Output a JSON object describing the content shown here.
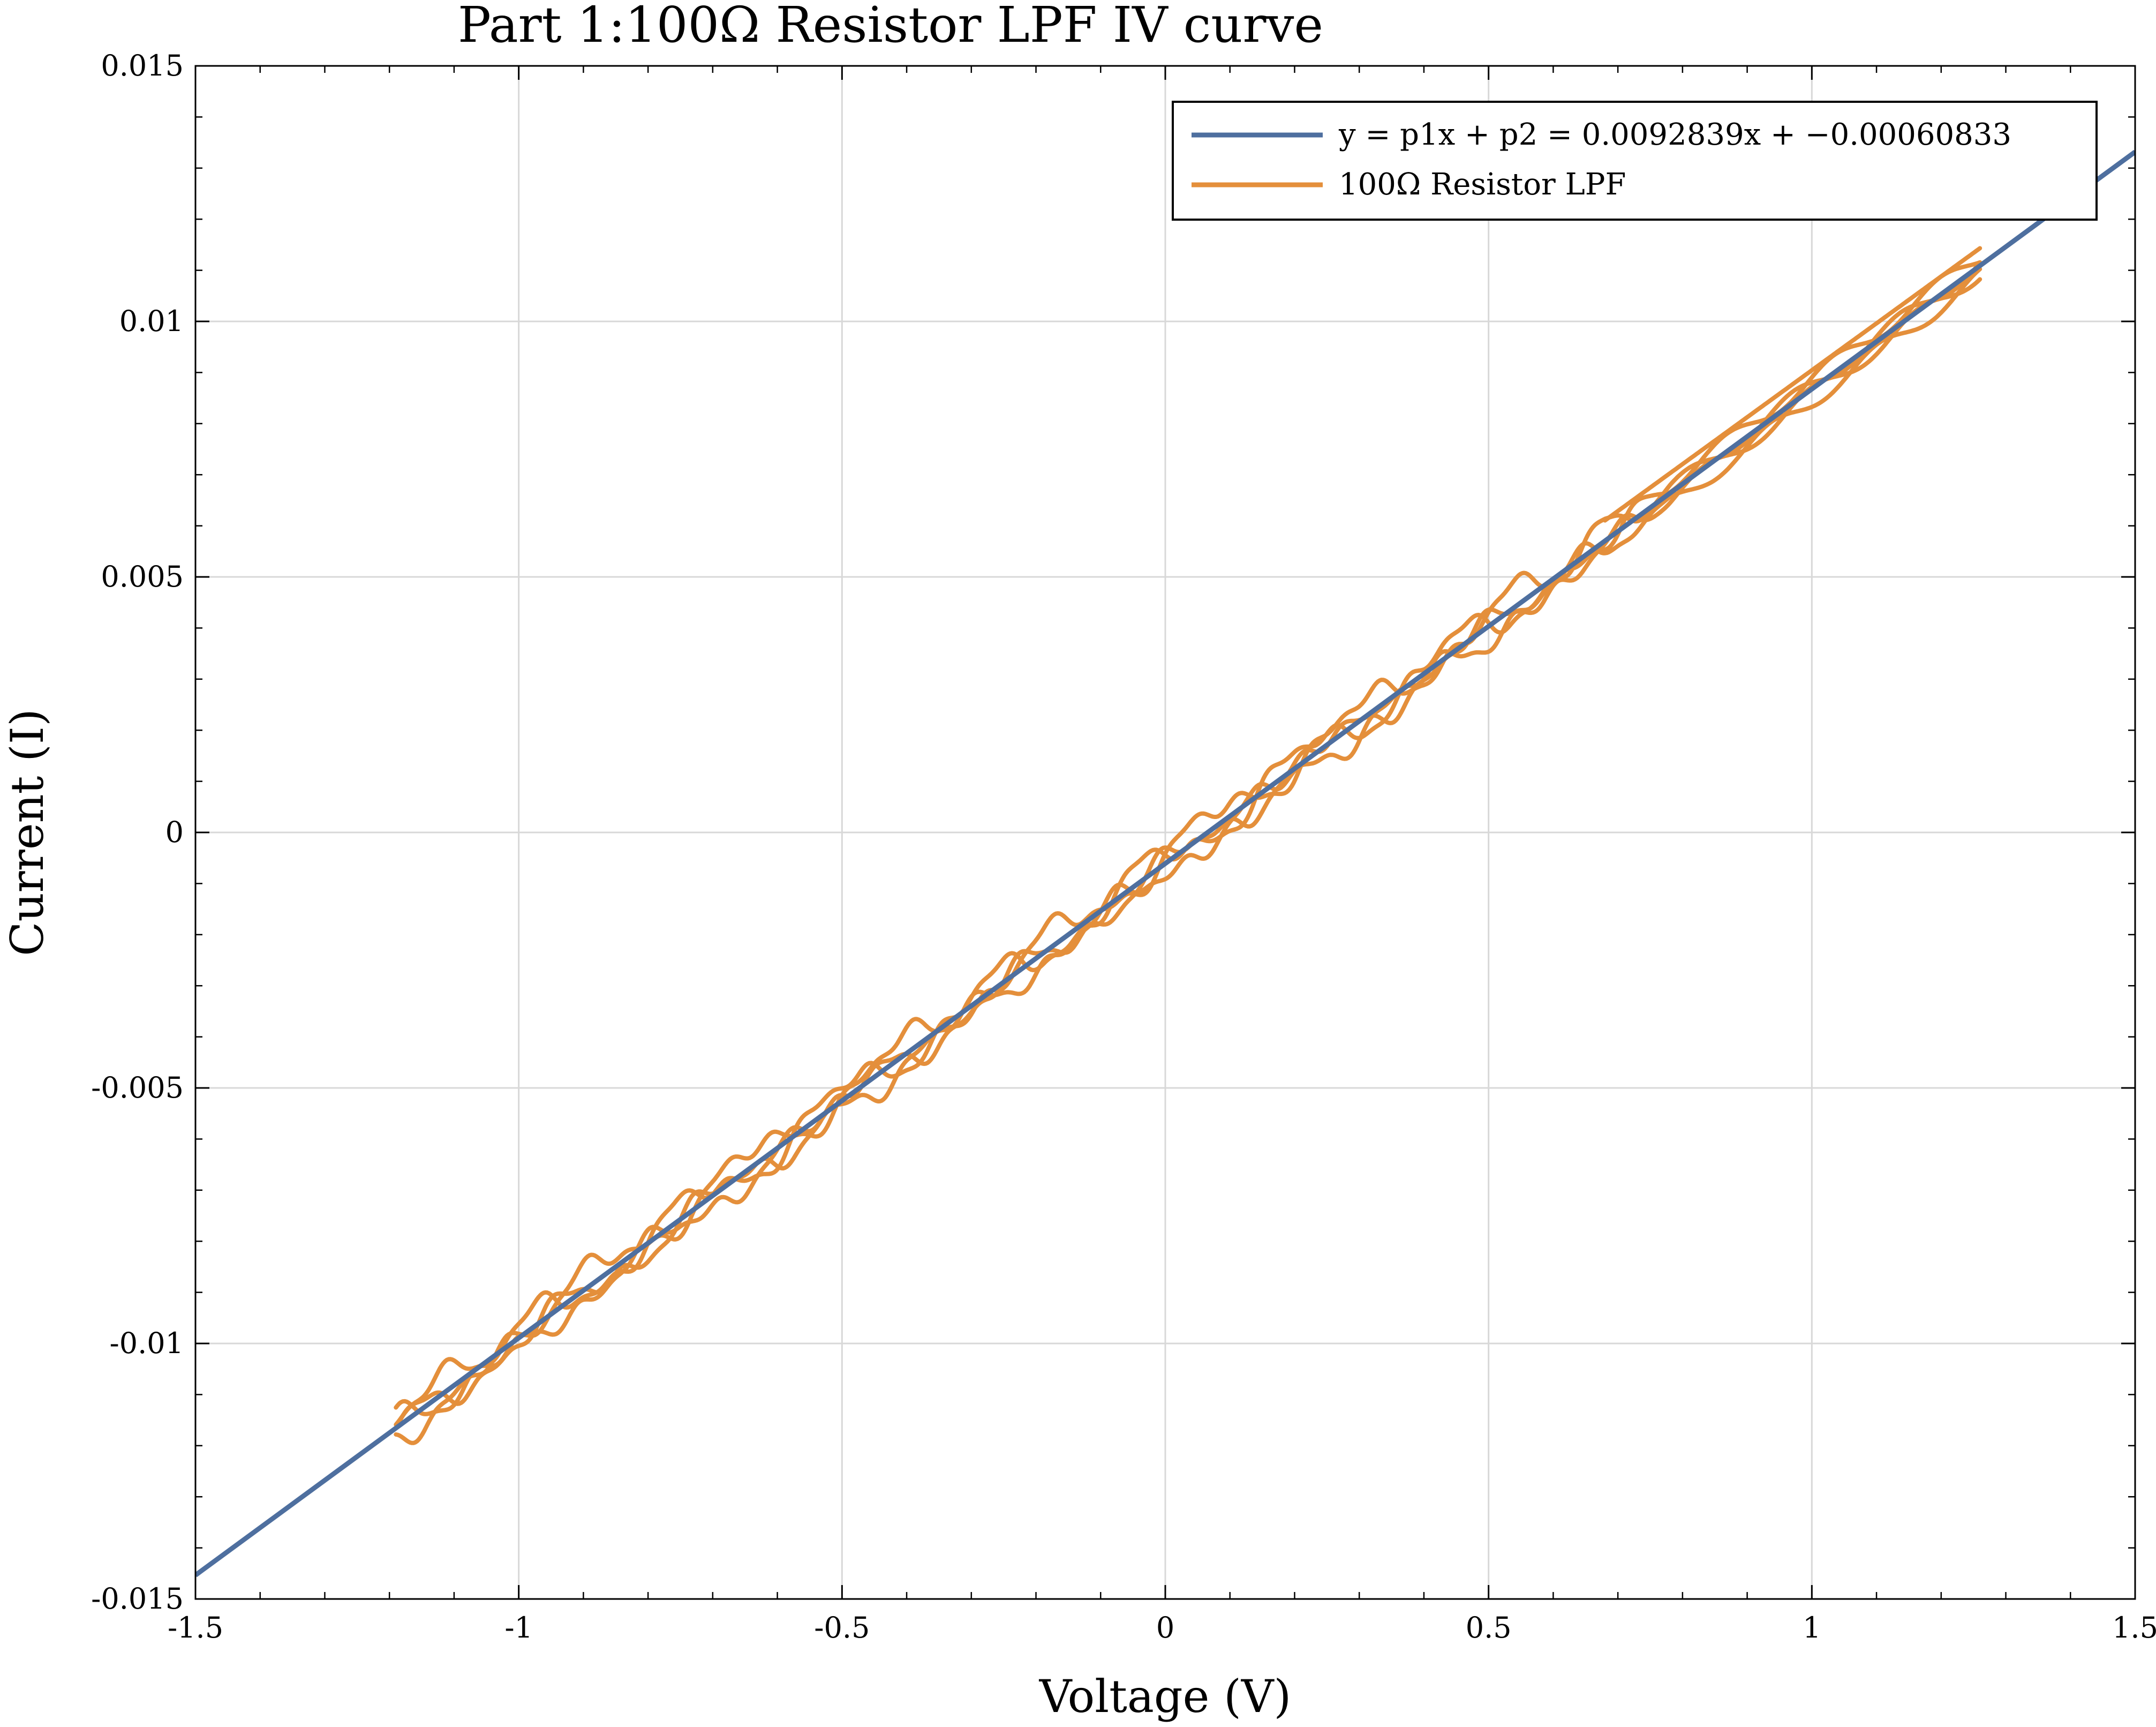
{
  "chart_data": {
    "type": "line",
    "title": "Part 1:100Ω Resistor LPF IV curve",
    "xlabel": "Voltage (V)",
    "ylabel": "Current (I)",
    "xlim": [
      -1.5,
      1.5
    ],
    "ylim": [
      -0.015,
      0.015
    ],
    "x_ticks": [
      -1.5,
      -1,
      -0.5,
      0,
      0.5,
      1,
      1.5
    ],
    "x_tick_labels": [
      "-1.5",
      "-1",
      "-0.5",
      "0",
      "0.5",
      "1",
      "1.5"
    ],
    "y_ticks": [
      -0.015,
      -0.01,
      -0.005,
      0,
      0.005,
      0.01,
      0.015
    ],
    "y_tick_labels": [
      "-0.015",
      "-0.01",
      "-0.005",
      "0",
      "0.005",
      "0.01",
      "0.015"
    ],
    "grid": true,
    "legend_position": "top-right",
    "fit": {
      "name": "y = p1x + p2 = 0.0092839x + −0.00060833",
      "slope": 0.0092839,
      "intercept": -0.00060833,
      "x_range": [
        -1.5,
        1.5
      ],
      "color": "#4e6f9f"
    },
    "series": [
      {
        "name": "100Ω Resistor LPF",
        "color": "#e48f3b",
        "x_range": [
          -1.19,
          1.26
        ],
        "ripple_amplitude": 0.0003
      }
    ]
  }
}
